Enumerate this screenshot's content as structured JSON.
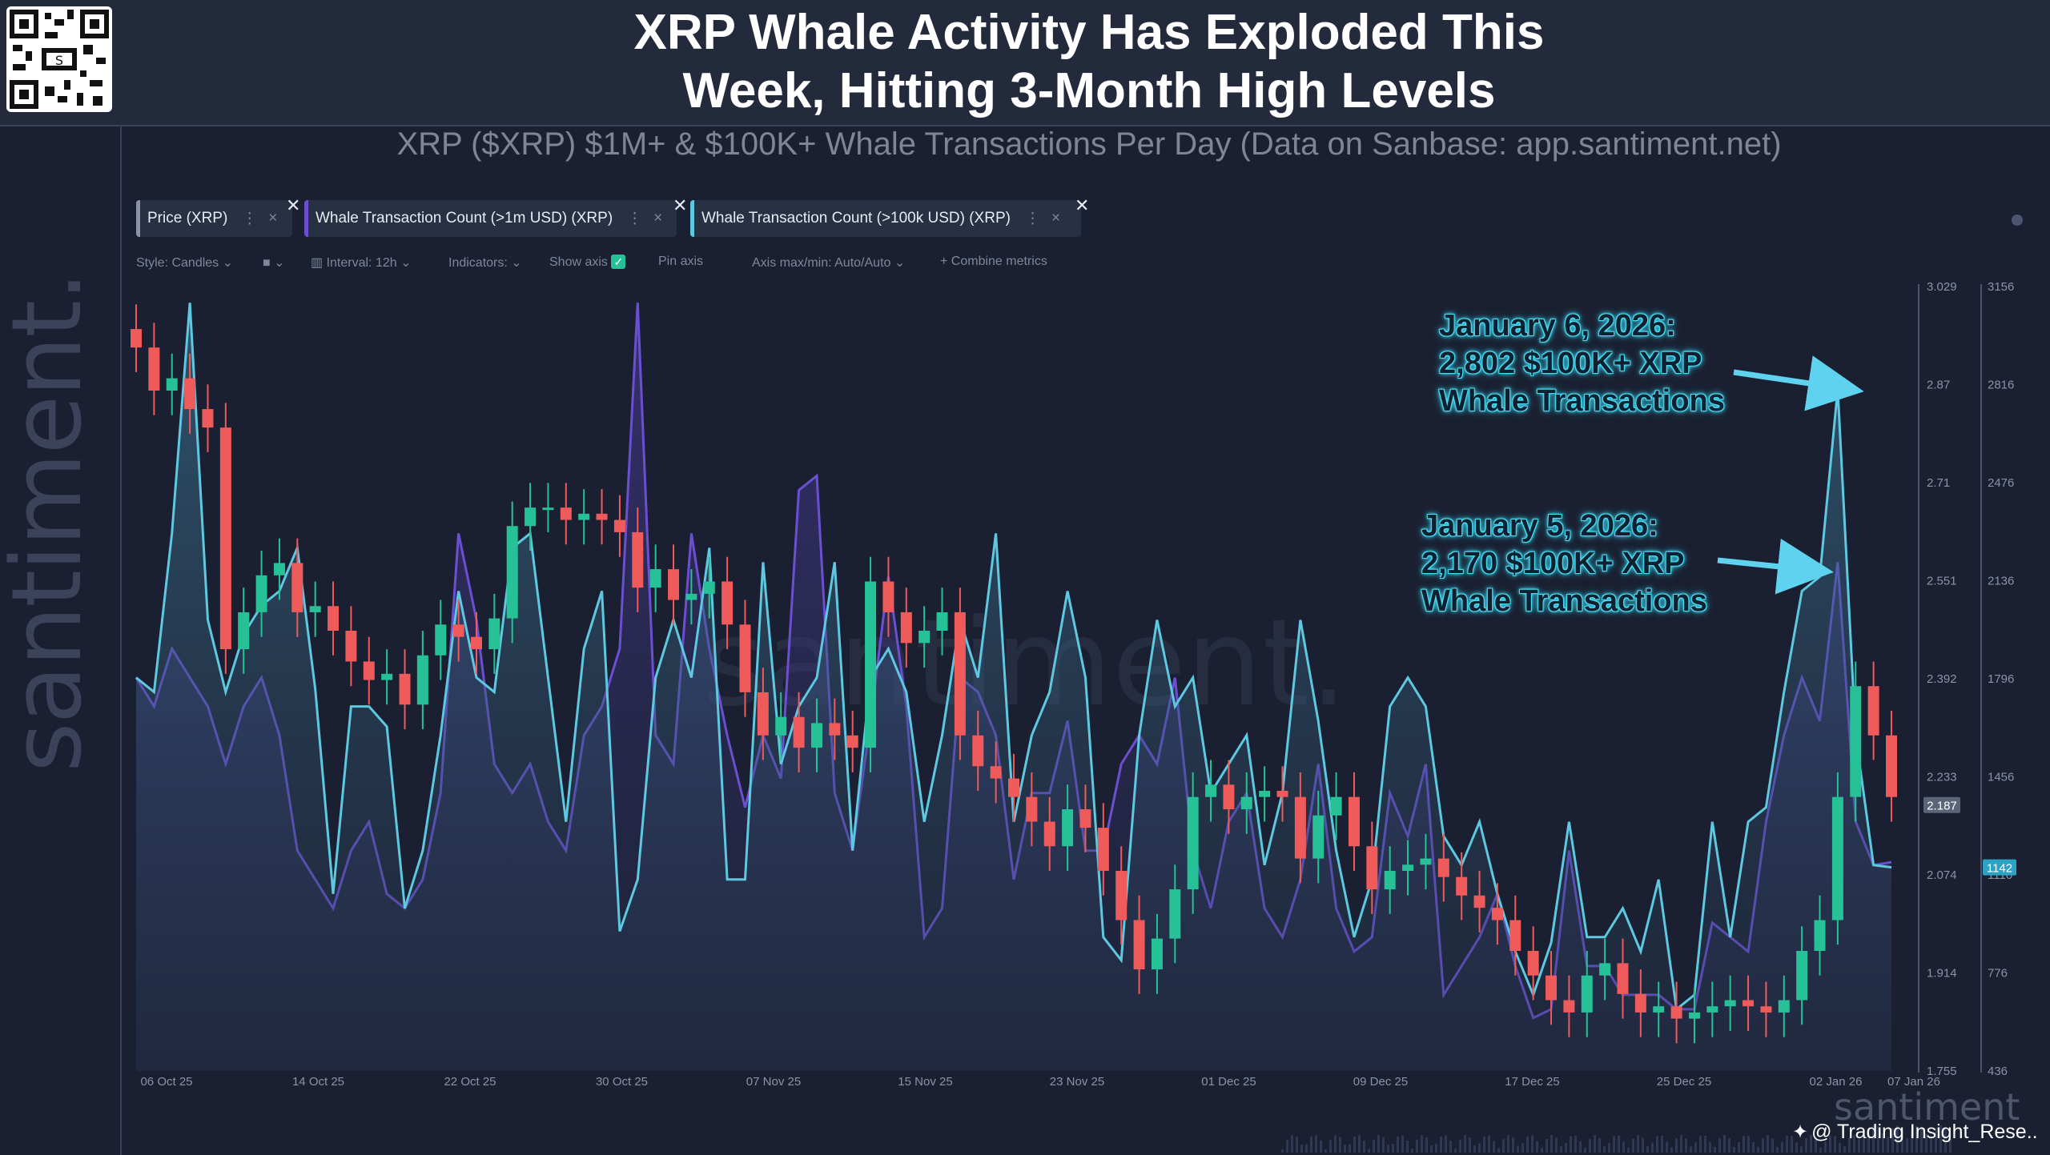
{
  "header": {
    "title_line1": "XRP Whale Activity Has Exploded This",
    "title_line2": "Week, Hitting 3-Month High Levels",
    "subtitle": "XRP ($XRP) $1M+ & $100K+ Whale Transactions Per Day (Data on Sanbase: app.santiment.net)"
  },
  "brand": {
    "vertical": "santiment.",
    "center_watermark": "santiment.",
    "bottom_watermark": "santiment",
    "credit": "@ Trading Insight_Rese..",
    "credit_icon": "binance-diamond-icon"
  },
  "metric_tabs": [
    {
      "label": "Price (XRP)",
      "color": "#8a93a8"
    },
    {
      "label": "Whale Transaction Count (>1m USD) (XRP)",
      "color": "#6b4fd1"
    },
    {
      "label": "Whale Transaction Count (>100k USD) (XRP)",
      "color": "#5ec8e0"
    }
  ],
  "toolbar": {
    "style": "Style: Candles",
    "interval": "Interval: 12h",
    "indicators": "Indicators:",
    "show_axis": "Show axis",
    "pin_axis": "Pin axis",
    "axis_minmax": "Axis max/min: Auto/Auto",
    "combine": "Combine metrics"
  },
  "annotations": {
    "jan6": {
      "line1": "January 6, 2026:",
      "line2": "2,802 $100K+ XRP",
      "line3": "Whale Transactions"
    },
    "jan5": {
      "line1": "January 5, 2026:",
      "line2": "2,170 $100K+ XRP",
      "line3": "Whale Transactions"
    }
  },
  "colors": {
    "up": "#26c196",
    "down": "#ef5a5a",
    "whale_1m": "#6b4fd1",
    "whale_100k": "#5ec8e0",
    "bg": "#1a2031"
  },
  "chart_data": {
    "type": "line",
    "title": "XRP ($XRP) $1M+ & $100K+ Whale Transactions Per Day",
    "x_ticks": [
      "06 Oct 25",
      "14 Oct 25",
      "22 Oct 25",
      "30 Oct 25",
      "07 Nov 25",
      "15 Nov 25",
      "23 Nov 25",
      "01 Dec 25",
      "09 Dec 25",
      "17 Dec 25",
      "25 Dec 25",
      "02 Jan 26",
      "07 Jan 26"
    ],
    "price_axis": {
      "ticks": [
        "3.029",
        "2.87",
        "2.71",
        "2.551",
        "2.392",
        "2.233",
        "2.074",
        "1.914",
        "1.755"
      ],
      "min": 1.755,
      "max": 3.029,
      "current": "2.187"
    },
    "count_axis": {
      "ticks": [
        "3156",
        "2816",
        "2476",
        "2136",
        "1796",
        "1456",
        "1116",
        "776",
        "436"
      ],
      "min": 436,
      "max": 3156,
      "current": "1142"
    },
    "price_close": [
      2.93,
      2.86,
      2.88,
      2.83,
      2.8,
      2.44,
      2.5,
      2.56,
      2.58,
      2.5,
      2.51,
      2.47,
      2.42,
      2.39,
      2.4,
      2.35,
      2.43,
      2.48,
      2.46,
      2.44,
      2.49,
      2.64,
      2.67,
      2.67,
      2.65,
      2.66,
      2.65,
      2.63,
      2.54,
      2.57,
      2.52,
      2.53,
      2.55,
      2.48,
      2.37,
      2.3,
      2.33,
      2.28,
      2.32,
      2.3,
      2.28,
      2.55,
      2.5,
      2.45,
      2.47,
      2.5,
      2.3,
      2.25,
      2.23,
      2.2,
      2.16,
      2.12,
      2.18,
      2.15,
      2.08,
      2.0,
      1.92,
      1.97,
      2.05,
      2.2,
      2.22,
      2.18,
      2.2,
      2.21,
      2.2,
      2.1,
      2.17,
      2.2,
      2.12,
      2.05,
      2.08,
      2.09,
      2.1,
      2.07,
      2.04,
      2.02,
      2.0,
      1.95,
      1.91,
      1.87,
      1.85,
      1.91,
      1.93,
      1.88,
      1.85,
      1.86,
      1.84,
      1.85,
      1.86,
      1.87,
      1.86,
      1.85,
      1.87,
      1.95,
      2.0,
      2.2,
      2.38,
      2.3,
      2.2
    ],
    "series": [
      {
        "name": "Whale Transaction Count (>100k USD) (XRP)",
        "values": [
          1800,
          1750,
          2300,
          3100,
          2000,
          1750,
          1950,
          2050,
          2100,
          2250,
          1760,
          1050,
          1700,
          1700,
          1630,
          1000,
          1200,
          1600,
          2100,
          1800,
          1750,
          2250,
          2300,
          1800,
          1300,
          1900,
          2100,
          920,
          1100,
          1800,
          2000,
          1800,
          2250,
          1100,
          1100,
          2200,
          1500,
          1700,
          1800,
          2200,
          1200,
          1800,
          1900,
          1750,
          1300,
          1600,
          2000,
          1800,
          2300,
          1300,
          1600,
          1750,
          2100,
          1800,
          900,
          820,
          1600,
          2000,
          1700,
          1800,
          1400,
          1500,
          1600,
          1150,
          1400,
          2000,
          1650,
          1200,
          900,
          1100,
          1700,
          1800,
          1700,
          1250,
          1150,
          1300,
          1050,
          850,
          700,
          880,
          1300,
          900,
          900,
          1000,
          850,
          1100,
          650,
          700,
          1300,
          900,
          1300,
          1350,
          1750,
          2100,
          2150,
          2800,
          1600,
          1150,
          1142
        ]
      },
      {
        "name": "Whale Transaction Count (>1m USD) (XRP)",
        "values": [
          1800,
          1700,
          1900,
          1800,
          1700,
          1500,
          1700,
          1800,
          1600,
          1200,
          1100,
          1000,
          1200,
          1300,
          1050,
          1000,
          1100,
          1400,
          2300,
          2000,
          1500,
          1400,
          1500,
          1300,
          1200,
          1600,
          1700,
          1900,
          3100,
          1600,
          1500,
          2300,
          1900,
          1600,
          1350,
          1600,
          1450,
          2450,
          2500,
          1400,
          1200,
          1650,
          2150,
          1700,
          900,
          1000,
          1800,
          1750,
          1600,
          1100,
          1400,
          1400,
          1650,
          1200,
          1200,
          1500,
          1600,
          1500,
          1800,
          1200,
          1000,
          1300,
          1400,
          1000,
          900,
          1100,
          1500,
          1000,
          850,
          900,
          1400,
          1250,
          1500,
          700,
          800,
          900,
          1050,
          800,
          620,
          650,
          1200,
          800,
          800,
          700,
          700,
          700,
          650,
          650,
          950,
          900,
          850,
          1300,
          1600,
          1800,
          1650,
          2200,
          1300,
          1150,
          1160
        ]
      }
    ]
  }
}
